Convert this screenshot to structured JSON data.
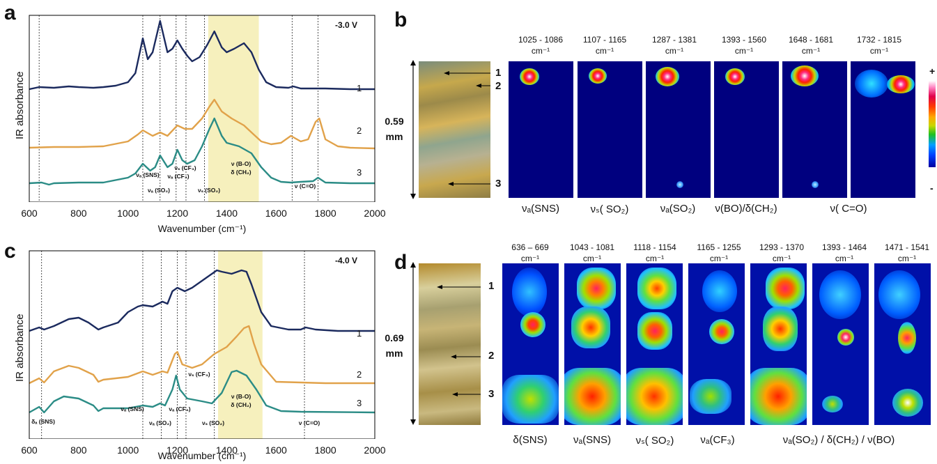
{
  "panel_letters": {
    "a": "a",
    "b": "b",
    "c": "c",
    "d": "d"
  },
  "chart_data": [
    {
      "type": "line",
      "panel": "a",
      "voltage": "-3.0 V",
      "xlabel": "Wavenumber (cm⁻¹)",
      "ylabel": "IR absorbance",
      "xlim": [
        600,
        2000
      ],
      "xticks": [
        "600",
        "800",
        "1000",
        "1200",
        "1400",
        "1600",
        "1800",
        "2000"
      ],
      "colors": [
        "#1b2a5e",
        "#e1a24a",
        "#2b8c86"
      ],
      "highlight": {
        "from": 1325,
        "to": 1530,
        "color": "#f6f0bd"
      },
      "ref_lines": [
        640,
        1060,
        1130,
        1195,
        1235,
        1310,
        1665,
        1770
      ],
      "series": [
        {
          "name": "1",
          "x": [
            600,
            640,
            700,
            760,
            800,
            860,
            900,
            950,
            1000,
            1030,
            1060,
            1080,
            1100,
            1130,
            1160,
            1180,
            1200,
            1220,
            1240,
            1260,
            1290,
            1320,
            1350,
            1380,
            1400,
            1430,
            1470,
            1500,
            1530,
            1560,
            1600,
            1650,
            1670,
            1700,
            1800,
            1900,
            2000
          ],
          "y": [
            0.02,
            0.05,
            0.04,
            0.06,
            0.05,
            0.04,
            0.05,
            0.07,
            0.12,
            0.25,
            0.75,
            0.45,
            0.55,
            1.0,
            0.55,
            0.6,
            0.72,
            0.6,
            0.5,
            0.42,
            0.48,
            0.65,
            0.85,
            0.62,
            0.55,
            0.6,
            0.68,
            0.55,
            0.3,
            0.12,
            0.05,
            0.04,
            0.06,
            0.03,
            0.03,
            0.02,
            0.02
          ]
        },
        {
          "name": "2",
          "x": [
            600,
            700,
            800,
            900,
            1000,
            1040,
            1060,
            1100,
            1130,
            1160,
            1200,
            1230,
            1260,
            1300,
            1330,
            1350,
            1380,
            1420,
            1470,
            1500,
            1540,
            1580,
            1620,
            1660,
            1700,
            1730,
            1760,
            1775,
            1800,
            1850,
            1900,
            2000
          ],
          "y": [
            0.03,
            0.04,
            0.04,
            0.05,
            0.12,
            0.22,
            0.28,
            0.2,
            0.25,
            0.2,
            0.35,
            0.3,
            0.3,
            0.45,
            0.62,
            0.72,
            0.55,
            0.45,
            0.35,
            0.25,
            0.12,
            0.08,
            0.1,
            0.2,
            0.12,
            0.15,
            0.4,
            0.45,
            0.15,
            0.05,
            0.03,
            0.02
          ]
        },
        {
          "name": "3",
          "x": [
            600,
            650,
            680,
            700,
            800,
            900,
            1000,
            1030,
            1060,
            1090,
            1110,
            1130,
            1160,
            1180,
            1200,
            1220,
            1240,
            1270,
            1300,
            1330,
            1350,
            1380,
            1400,
            1450,
            1500,
            1540,
            1580,
            1620,
            1660,
            1700,
            1750,
            1770,
            1800,
            1900,
            2000
          ],
          "y": [
            0.02,
            0.03,
            0.0,
            0.02,
            0.03,
            0.03,
            0.1,
            0.16,
            0.3,
            0.2,
            0.25,
            0.42,
            0.25,
            0.3,
            0.5,
            0.35,
            0.3,
            0.35,
            0.55,
            0.8,
            0.95,
            0.7,
            0.6,
            0.55,
            0.45,
            0.25,
            0.1,
            0.04,
            0.03,
            0.04,
            0.05,
            0.1,
            0.03,
            0.02,
            0.02
          ]
        }
      ],
      "annotations": [
        {
          "text": "νₐ (SNS)",
          "x": 1060,
          "y": 0.42
        },
        {
          "text": "νₐ (SO₂)",
          "x": 1130,
          "y": 0.15
        },
        {
          "text": "νₐ (CF₃)",
          "x": 1200,
          "y": 0.3
        },
        {
          "text": "νₛ (CF₃)",
          "x": 1240,
          "y": 0.48
        },
        {
          "text": "νₛ (SO₂)",
          "x": 1310,
          "y": 0.15
        },
        {
          "text": "ν (B-O)",
          "x": 1430,
          "y": 0.55
        },
        {
          "text": "δ (CH₂)",
          "x": 1430,
          "y": 0.45
        },
        {
          "text": "ν (C=O)",
          "x": 1680,
          "y": 0.2
        }
      ]
    },
    {
      "type": "line",
      "panel": "c",
      "voltage": "-4.0 V",
      "xlabel": "Wavenumber (cm⁻¹)",
      "ylabel": "IR absorbance",
      "xlim": [
        600,
        2000
      ],
      "xticks": [
        "600",
        "800",
        "1000",
        "1200",
        "1400",
        "1600",
        "1800",
        "2000"
      ],
      "colors": [
        "#1b2a5e",
        "#e1a24a",
        "#2b8c86"
      ],
      "highlight": {
        "from": 1365,
        "to": 1545,
        "color": "#f6f0bd"
      },
      "ref_lines": [
        650,
        1060,
        1135,
        1200,
        1235,
        1350,
        1715
      ],
      "series": [
        {
          "name": "1",
          "x": [
            600,
            640,
            660,
            700,
            760,
            800,
            840,
            880,
            900,
            960,
            1000,
            1040,
            1060,
            1100,
            1140,
            1160,
            1180,
            1200,
            1230,
            1260,
            1300,
            1340,
            1360,
            1380,
            1420,
            1460,
            1480,
            1500,
            1540,
            1580,
            1650,
            1700,
            1720,
            1760,
            1850,
            2000
          ],
          "y": [
            0.03,
            0.08,
            0.05,
            0.1,
            0.2,
            0.22,
            0.15,
            0.05,
            0.08,
            0.15,
            0.3,
            0.38,
            0.4,
            0.38,
            0.45,
            0.42,
            0.6,
            0.65,
            0.6,
            0.65,
            0.75,
            0.85,
            0.9,
            0.88,
            0.85,
            0.9,
            0.88,
            0.7,
            0.3,
            0.1,
            0.05,
            0.05,
            0.08,
            0.05,
            0.03,
            0.03
          ]
        },
        {
          "name": "2",
          "x": [
            600,
            640,
            660,
            700,
            760,
            800,
            860,
            880,
            900,
            1000,
            1060,
            1100,
            1140,
            1160,
            1190,
            1200,
            1220,
            1260,
            1300,
            1350,
            1400,
            1440,
            1470,
            1490,
            1510,
            1540,
            1600,
            1700,
            1800,
            2000
          ],
          "y": [
            0.03,
            0.1,
            0.04,
            0.2,
            0.28,
            0.25,
            0.15,
            0.05,
            0.08,
            0.12,
            0.2,
            0.15,
            0.2,
            0.18,
            0.45,
            0.48,
            0.3,
            0.25,
            0.3,
            0.45,
            0.55,
            0.7,
            0.82,
            0.85,
            0.6,
            0.3,
            0.05,
            0.04,
            0.03,
            0.03
          ]
        },
        {
          "name": "3",
          "x": [
            600,
            640,
            660,
            700,
            740,
            800,
            860,
            880,
            900,
            1000,
            1060,
            1100,
            1130,
            1150,
            1180,
            1195,
            1210,
            1240,
            1300,
            1340,
            1380,
            1420,
            1440,
            1480,
            1520,
            1560,
            1620,
            1700,
            2000
          ],
          "y": [
            0.02,
            0.1,
            0.02,
            0.18,
            0.25,
            0.22,
            0.12,
            0.04,
            0.08,
            0.08,
            0.12,
            0.1,
            0.15,
            0.12,
            0.35,
            0.55,
            0.35,
            0.22,
            0.18,
            0.15,
            0.3,
            0.6,
            0.62,
            0.55,
            0.35,
            0.12,
            0.04,
            0.03,
            0.02
          ]
        }
      ],
      "annotations": [
        {
          "text": "δₐ (SNS)",
          "x": 640,
          "y": 0.1
        },
        {
          "text": "νₐ (SNS)",
          "x": 1040,
          "y": 0.2
        },
        {
          "text": "νₐ (SO₂)",
          "x": 1130,
          "y": 0.1
        },
        {
          "text": "νₐ (CF₃)",
          "x": 1195,
          "y": 0.2
        },
        {
          "text": "νₛ (CF₃)",
          "x": 1245,
          "y": 0.35
        },
        {
          "text": "νₛ (SO₂)",
          "x": 1330,
          "y": 0.1
        },
        {
          "text": "ν (B-O)",
          "x": 1455,
          "y": 0.3
        },
        {
          "text": "δ (CH₂)",
          "x": 1455,
          "y": 0.22
        },
        {
          "text": "ν (C=O)",
          "x": 1720,
          "y": 0.1
        }
      ]
    }
  ],
  "map_b": {
    "scale": {
      "value": "0.59",
      "unit": "mm"
    },
    "points": [
      "1",
      "2",
      "3"
    ],
    "ranges": [
      {
        "range": "1025 - 1086",
        "unit": "cm⁻¹"
      },
      {
        "range": "1107 - 1165",
        "unit": "cm⁻¹"
      },
      {
        "range": "1287 - 1381",
        "unit": "cm⁻¹"
      },
      {
        "range": "1393 - 1560",
        "unit": "cm⁻¹"
      },
      {
        "range": "1648 - 1681",
        "unit": "cm⁻¹"
      },
      {
        "range": "1732 - 1815",
        "unit": "cm⁻¹"
      }
    ],
    "mode_labels": [
      "νₐ(SNS)",
      "νₛ( SO₂)",
      "νₐ(SO₂)",
      "ν(BO)/δ(CH₂)",
      "ν( C=O)"
    ],
    "colorbar": {
      "max": "+",
      "min": "-"
    }
  },
  "map_d": {
    "scale": {
      "value": "0.69",
      "unit": "mm"
    },
    "points": [
      "1",
      "2",
      "3"
    ],
    "ranges": [
      {
        "range": "636 – 669",
        "unit": "cm⁻¹"
      },
      {
        "range": "1043 - 1081",
        "unit": "cm⁻¹"
      },
      {
        "range": "1118 - 1154",
        "unit": "cm⁻¹"
      },
      {
        "range": "1165 - 1255",
        "unit": "cm⁻¹"
      },
      {
        "range": "1293 - 1370",
        "unit": "cm⁻¹"
      },
      {
        "range": "1393 - 1464",
        "unit": "cm⁻¹"
      },
      {
        "range": "1471 - 1541",
        "unit": "cm⁻¹"
      }
    ],
    "mode_labels": [
      "δ(SNS)",
      "νₐ(SNS)",
      "νₛ( SO₂)",
      "νₐ(CF₃)",
      "νₐ(SO₂) / δ(CH₂) / ν(BO)"
    ]
  }
}
